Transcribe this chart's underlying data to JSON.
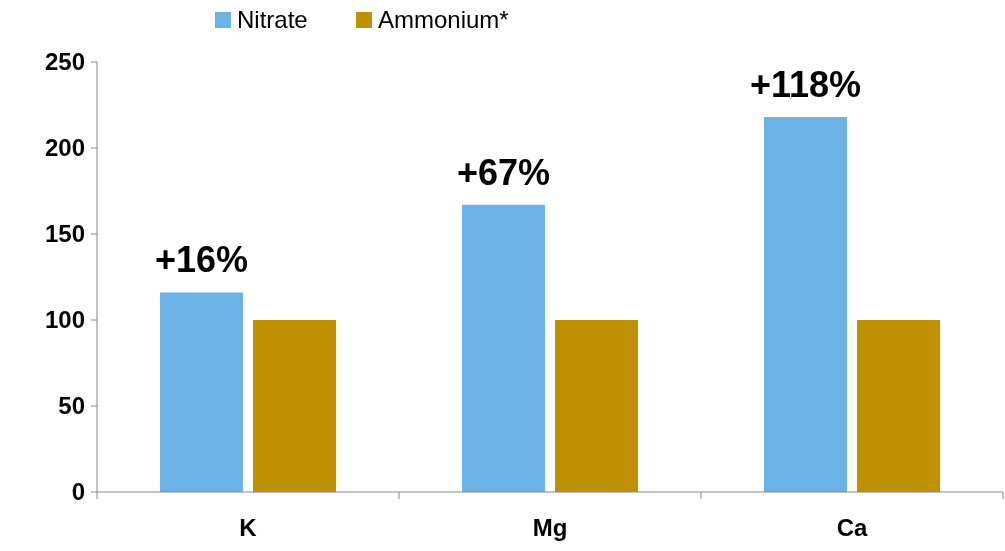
{
  "chart_data": {
    "type": "bar",
    "categories": [
      "K",
      "Mg",
      "Ca"
    ],
    "series": [
      {
        "name": "Nitrate",
        "color": "#6bb3e6",
        "values": [
          116,
          167,
          218
        ]
      },
      {
        "name": "Ammonium*",
        "color": "#bf9000",
        "values": [
          100,
          100,
          100
        ]
      }
    ],
    "ylim": [
      0,
      250
    ],
    "yticks": [
      0,
      50,
      100,
      150,
      200,
      250
    ],
    "grid": false,
    "legend": "top",
    "annotations": [
      {
        "text": "+16%",
        "x": "K",
        "y": 116
      },
      {
        "text": "+67%",
        "x": "Mg",
        "y": 167
      },
      {
        "text": "+118%",
        "x": "Ca",
        "y": 218
      }
    ]
  }
}
